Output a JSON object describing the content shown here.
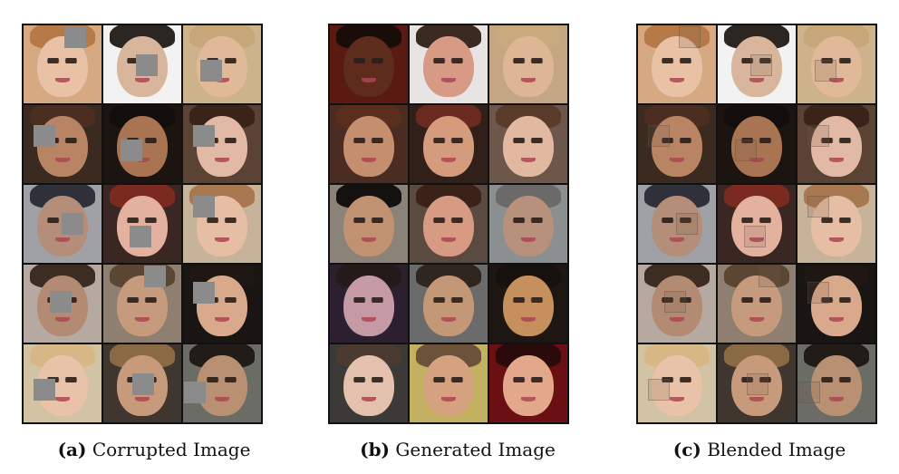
{
  "panels": [
    {
      "id": "a",
      "caption_label": "(a)",
      "caption_text": "Corrupted Image",
      "tiles": [
        {
          "bg": "#d7a982",
          "skin": "#e9c2a6",
          "hair": "#b57a48",
          "mask": [
            0.72,
            0.02
          ]
        },
        {
          "bg": "#f2f2f2",
          "skin": "#d9b59c",
          "hair": "#2b2621",
          "mask": [
            0.58,
            0.52
          ]
        },
        {
          "bg": "#cdb38c",
          "skin": "#e0b998",
          "hair": "#c7a77a",
          "mask": [
            0.3,
            0.62
          ]
        },
        {
          "bg": "#3a2a1f",
          "skin": "#b98463",
          "hair": "#4b2e1f",
          "mask": [
            0.18,
            0.36
          ]
        },
        {
          "bg": "#1b1410",
          "skin": "#a87452",
          "hair": "#120e0c",
          "mask": [
            0.3,
            0.62
          ]
        },
        {
          "bg": "#5a4335",
          "skin": "#e2b9a4",
          "hair": "#3a241a",
          "mask": [
            0.18,
            0.36
          ]
        },
        {
          "bg": "#9fa1a6",
          "skin": "#b48e78",
          "hair": "#30303a",
          "mask": [
            0.68,
            0.5
          ]
        },
        {
          "bg": "#3a2623",
          "skin": "#e3b19e",
          "hair": "#7a2a1e",
          "mask": [
            0.46,
            0.72
          ]
        },
        {
          "bg": "#c7b39a",
          "skin": "#e6bea4",
          "hair": "#a87850",
          "mask": [
            0.18,
            0.2
          ]
        },
        {
          "bg": "#b6a9a1",
          "skin": "#b38b73",
          "hair": "#3c2c22",
          "mask": [
            0.46,
            0.46
          ]
        },
        {
          "bg": "#8e7f70",
          "skin": "#c59a7d",
          "hair": "#5b4634",
          "mask": [
            0.72,
            0.02
          ]
        },
        {
          "bg": "#191512",
          "skin": "#d9a98b",
          "hair": "#1e1713",
          "mask": [
            0.18,
            0.3
          ]
        },
        {
          "bg": "#d2c3a5",
          "skin": "#e8c3a7",
          "hair": "#d8b787",
          "mask": [
            0.18,
            0.62
          ]
        },
        {
          "bg": "#3f3630",
          "skin": "#c89a7c",
          "hair": "#8a6a45",
          "mask": [
            0.52,
            0.52
          ]
        },
        {
          "bg": "#6b6c66",
          "skin": "#b99071",
          "hair": "#221c18",
          "mask": [
            0.02,
            0.66
          ]
        }
      ]
    },
    {
      "id": "b",
      "caption_label": "(b)",
      "caption_text": "Generated Image",
      "tiles": [
        {
          "bg": "#5a1a12",
          "skin": "#5e2c1d",
          "hair": "#1a0c08"
        },
        {
          "bg": "#e9e4e4",
          "skin": "#d79a84",
          "hair": "#3a2a22"
        },
        {
          "bg": "#c4a782",
          "skin": "#ddb696",
          "hair": "#c9a97e"
        },
        {
          "bg": "#4a2c22",
          "skin": "#c58e6e",
          "hair": "#5a2d1c"
        },
        {
          "bg": "#311f1a",
          "skin": "#d49b7d",
          "hair": "#6a2a20"
        },
        {
          "bg": "#6d564a",
          "skin": "#e1b9a1",
          "hair": "#5a3a28"
        },
        {
          "bg": "#8b8278",
          "skin": "#c09272",
          "hair": "#141110"
        },
        {
          "bg": "#5a4a40",
          "skin": "#d79a82",
          "hair": "#3a2218"
        },
        {
          "bg": "#8c8f8f",
          "skin": "#b7917c",
          "hair": "#6b6a68"
        },
        {
          "bg": "#2c2030",
          "skin": "#c69aa5",
          "hair": "#241a1a"
        },
        {
          "bg": "#6b6b6b",
          "skin": "#c49877",
          "hair": "#2f2620"
        },
        {
          "bg": "#1e1612",
          "skin": "#c58f5e",
          "hair": "#17110d"
        },
        {
          "bg": "#3b3a36",
          "skin": "#e3c1ae",
          "hair": "#4a3a30"
        },
        {
          "bg": "#c4b061",
          "skin": "#d5a27f",
          "hair": "#6b5238"
        },
        {
          "bg": "#6a0f12",
          "skin": "#e3a88c",
          "hair": "#2a0a0a"
        }
      ]
    },
    {
      "id": "c",
      "caption_label": "(c)",
      "caption_text": "Blended Image",
      "tiles": [
        {
          "bg": "#d7a982",
          "skin": "#e9c2a6",
          "hair": "#b57a48",
          "seam": [
            0.72,
            0.02
          ]
        },
        {
          "bg": "#f2f2f2",
          "skin": "#d9b59c",
          "hair": "#2b2621",
          "seam": [
            0.58,
            0.52
          ]
        },
        {
          "bg": "#cdb38c",
          "skin": "#e0b998",
          "hair": "#c7a77a",
          "seam": [
            0.3,
            0.62
          ]
        },
        {
          "bg": "#3a2a1f",
          "skin": "#b98463",
          "hair": "#4b2e1f",
          "seam": [
            0.18,
            0.36
          ]
        },
        {
          "bg": "#1b1410",
          "skin": "#a87452",
          "hair": "#120e0c",
          "seam": [
            0.3,
            0.62
          ]
        },
        {
          "bg": "#5a4335",
          "skin": "#e2b9a4",
          "hair": "#3a241a",
          "seam": [
            0.18,
            0.36
          ]
        },
        {
          "bg": "#9fa1a6",
          "skin": "#b48e78",
          "hair": "#30303a",
          "seam": [
            0.68,
            0.5
          ]
        },
        {
          "bg": "#3a2623",
          "skin": "#e3b19e",
          "hair": "#7a2a1e",
          "seam": [
            0.46,
            0.72
          ]
        },
        {
          "bg": "#c7b39a",
          "skin": "#e6bea4",
          "hair": "#a87850",
          "seam": [
            0.18,
            0.2
          ]
        },
        {
          "bg": "#b6a9a1",
          "skin": "#b38b73",
          "hair": "#3c2c22",
          "seam": [
            0.46,
            0.46
          ]
        },
        {
          "bg": "#8e7f70",
          "skin": "#c59a7d",
          "hair": "#5b4634",
          "seam": [
            0.72,
            0.02
          ]
        },
        {
          "bg": "#191512",
          "skin": "#d9a98b",
          "hair": "#1e1713",
          "seam": [
            0.18,
            0.3
          ]
        },
        {
          "bg": "#d2c3a5",
          "skin": "#e8c3a7",
          "hair": "#d8b787",
          "seam": [
            0.18,
            0.62
          ]
        },
        {
          "bg": "#3f3630",
          "skin": "#c89a7c",
          "hair": "#8a6a45",
          "seam": [
            0.52,
            0.52
          ]
        },
        {
          "bg": "#6b6c66",
          "skin": "#b99071",
          "hair": "#221c18",
          "seam": [
            0.02,
            0.66
          ]
        }
      ]
    }
  ]
}
